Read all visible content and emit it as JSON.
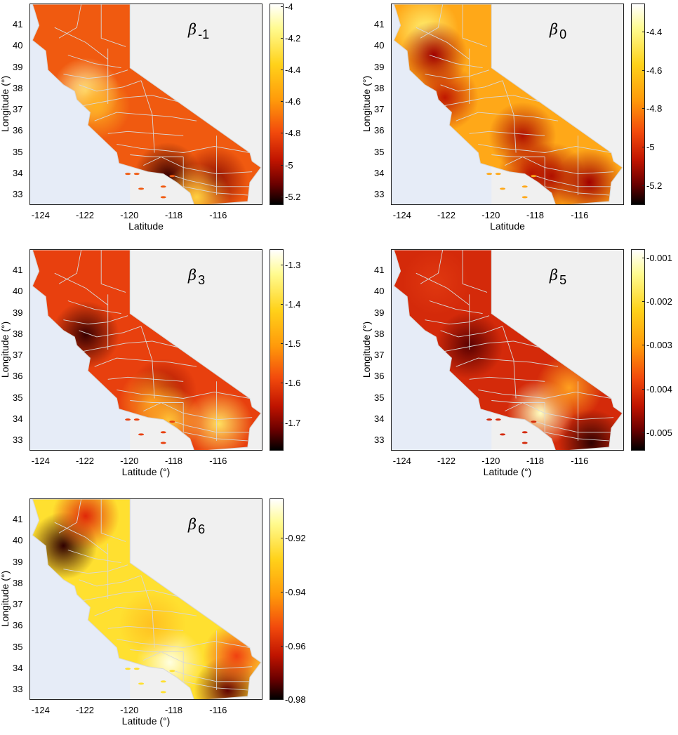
{
  "x_ticks": [
    "-124",
    "-122",
    "-120",
    "-118",
    "-116"
  ],
  "y_ticks": [
    "41",
    "40",
    "39",
    "38",
    "37",
    "36",
    "35",
    "34",
    "33"
  ],
  "y_axis_label": "Longitude (°)",
  "panels": [
    {
      "id": "beta-minus1",
      "symbol": "β",
      "subscript": "-1",
      "xlabel": "Latitude",
      "colorbar_ticks": [
        "-4",
        "-4.2",
        "-4.4",
        "-4.6",
        "-4.8",
        "-5",
        "-5.2"
      ],
      "colorbar_range": [
        -5.25,
        -3.98
      ],
      "base_color": "#f05a10",
      "hotspots": [
        {
          "lon": -122.0,
          "lat": 37.9,
          "color": "#fff3a0"
        },
        {
          "lon": -121.5,
          "lat": 37.2,
          "color": "#ffb020"
        },
        {
          "lon": -118.3,
          "lat": 33.9,
          "color": "#3a0000"
        },
        {
          "lon": -116.2,
          "lat": 33.7,
          "color": "#8a0a00"
        },
        {
          "lon": -117.0,
          "lat": 32.9,
          "color": "#ffd040"
        }
      ]
    },
    {
      "id": "beta-0",
      "symbol": "β",
      "subscript": "0",
      "xlabel": "Latitude",
      "colorbar_ticks": [
        "-4.4",
        "-4.6",
        "-4.8",
        "-5",
        "-5.2"
      ],
      "colorbar_range": [
        -5.3,
        -4.25
      ],
      "base_color": "#ffa818",
      "hotspots": [
        {
          "lon": -123.0,
          "lat": 40.8,
          "color": "#fff070"
        },
        {
          "lon": -122.6,
          "lat": 39.6,
          "color": "#a00000"
        },
        {
          "lon": -122.1,
          "lat": 37.6,
          "color": "#c01800"
        },
        {
          "lon": -118.6,
          "lat": 35.8,
          "color": "#b01000"
        },
        {
          "lon": -118.2,
          "lat": 34.0,
          "color": "#c01800"
        },
        {
          "lon": -117.3,
          "lat": 33.9,
          "color": "#b01000"
        },
        {
          "lon": -115.6,
          "lat": 33.6,
          "color": "#a00000"
        }
      ]
    },
    {
      "id": "beta-3",
      "symbol": "β",
      "subscript": "3",
      "xlabel": "Latitude (°)",
      "colorbar_ticks": [
        "-1.3",
        "-1.4",
        "-1.5",
        "-1.6",
        "-1.7"
      ],
      "colorbar_range": [
        -1.77,
        -1.26
      ],
      "base_color": "#e8400e",
      "hotspots": [
        {
          "lon": -122.0,
          "lat": 38.0,
          "color": "#3a0000"
        },
        {
          "lon": -118.5,
          "lat": 35.3,
          "color": "#a01000"
        },
        {
          "lon": -118.3,
          "lat": 34.0,
          "color": "#ffd040"
        },
        {
          "lon": -116.0,
          "lat": 33.8,
          "color": "#ffe060"
        },
        {
          "lon": -119.0,
          "lat": 34.8,
          "color": "#ffa020"
        }
      ]
    },
    {
      "id": "beta-5",
      "symbol": "β",
      "subscript": "5",
      "xlabel": "Latitude (°)",
      "colorbar_ticks": [
        "-0.001",
        "-0.002",
        "-0.003",
        "-0.004",
        "-0.005"
      ],
      "colorbar_range": [
        -0.0054,
        -0.0008
      ],
      "base_color": "#d42a0a",
      "hotspots": [
        {
          "lon": -121.0,
          "lat": 37.5,
          "color": "#5a0000"
        },
        {
          "lon": -117.8,
          "lat": 34.3,
          "color": "#ffffc0"
        },
        {
          "lon": -116.5,
          "lat": 35.5,
          "color": "#ffa020"
        },
        {
          "lon": -115.5,
          "lat": 32.9,
          "color": "#300000"
        },
        {
          "lon": -122.5,
          "lat": 40.5,
          "color": "#e03810"
        }
      ]
    },
    {
      "id": "beta-6",
      "symbol": "β",
      "subscript": "6",
      "xlabel": "Latitude (°)",
      "colorbar_ticks": [
        "-0.92",
        "-0.94",
        "-0.96",
        "-0.98"
      ],
      "colorbar_range": [
        -0.98,
        -0.905
      ],
      "base_color": "#ffe030",
      "hotspots": [
        {
          "lon": -123.0,
          "lat": 39.8,
          "color": "#300000"
        },
        {
          "lon": -122.0,
          "lat": 41.2,
          "color": "#e02808"
        },
        {
          "lon": -118.2,
          "lat": 34.3,
          "color": "#ffffe0"
        },
        {
          "lon": -115.6,
          "lat": 33.0,
          "color": "#600000"
        },
        {
          "lon": -119.0,
          "lat": 36.1,
          "color": "#ffc020"
        },
        {
          "lon": -115.2,
          "lat": 34.6,
          "color": "#f04010"
        }
      ]
    }
  ]
}
